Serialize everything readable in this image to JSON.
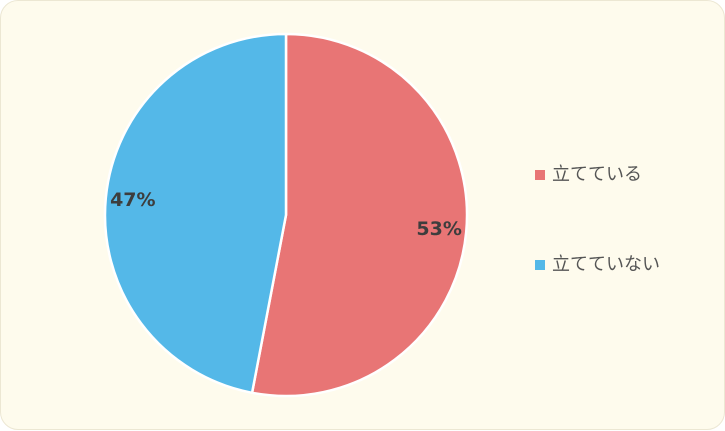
{
  "chart_data": {
    "type": "pie",
    "title": "",
    "categories": [
      "立てている",
      "立てていない"
    ],
    "values": [
      53,
      47
    ],
    "value_labels": [
      "53%",
      "47%"
    ],
    "colors": [
      "#e87575",
      "#54b8e8"
    ],
    "start_angle_deg": 0,
    "direction": "clockwise",
    "legend_position": "right"
  }
}
